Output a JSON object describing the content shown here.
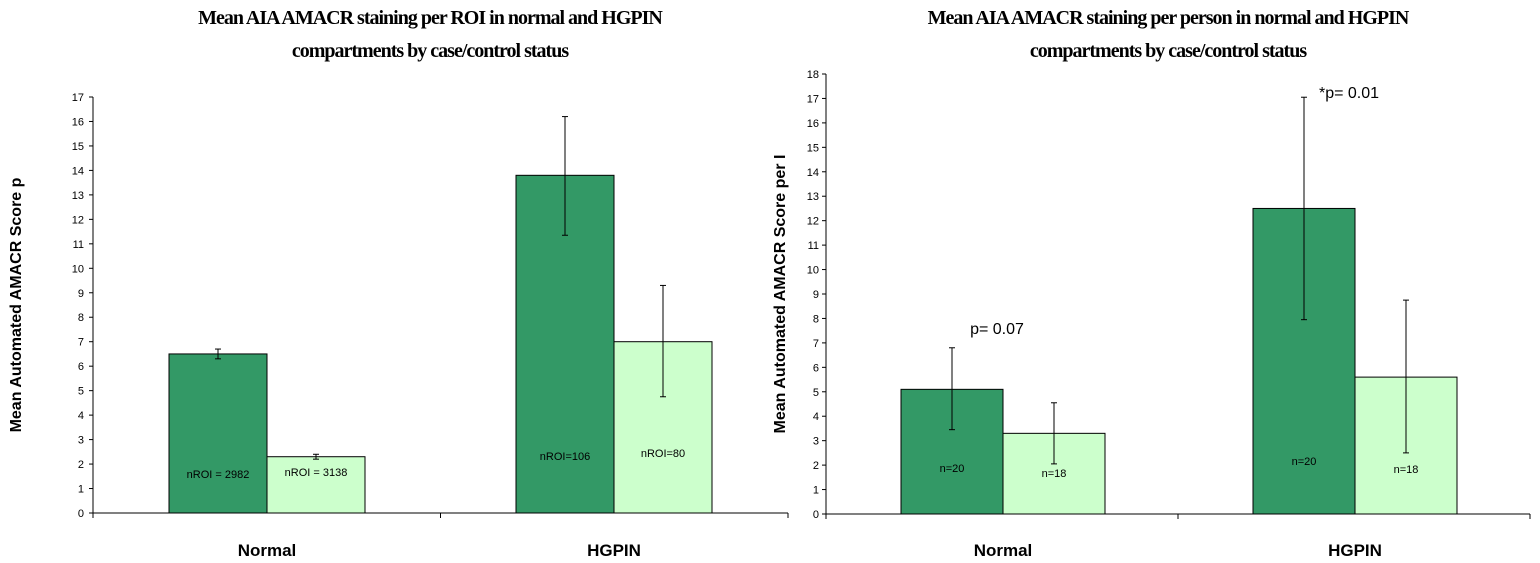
{
  "chart_data": [
    {
      "type": "bar",
      "title_lines": [
        "Mean AIA AMACR staining per ROI in   normal and HGPIN",
        "compartments by case/control status"
      ],
      "ylabel": "Mean Automated  AMACR Score p",
      "xlabel": "",
      "ylim": [
        0,
        17
      ],
      "yticks": [
        0,
        1,
        2,
        3,
        4,
        5,
        6,
        7,
        8,
        9,
        10,
        11,
        12,
        13,
        14,
        15,
        16,
        17
      ],
      "categories": [
        "Normal",
        "HGPIN"
      ],
      "series": [
        {
          "color": "#339966",
          "values": [
            6.5,
            13.8
          ],
          "error_low": [
            6.3,
            11.35
          ],
          "error_high": [
            6.7,
            16.2
          ],
          "bar_labels": [
            "nROI = 2982",
            "nROI=106"
          ]
        },
        {
          "color": "#ccffcc",
          "values": [
            2.3,
            7.0
          ],
          "error_low": [
            2.2,
            4.75
          ],
          "error_high": [
            2.4,
            9.3
          ],
          "bar_labels": [
            "nROI = 3138",
            "nROI=80"
          ]
        }
      ],
      "annotations": []
    },
    {
      "type": "bar",
      "title_lines": [
        "Mean AIA AMACR staining per person in normal and HGPIN",
        "compartments by case/control status"
      ],
      "ylabel": "Mean Automated AMACR Score per I",
      "xlabel": "",
      "ylim": [
        0,
        18
      ],
      "yticks": [
        0,
        1,
        2,
        3,
        4,
        5,
        6,
        7,
        8,
        9,
        10,
        11,
        12,
        13,
        14,
        15,
        16,
        17,
        18
      ],
      "categories": [
        "Normal",
        "HGPIN"
      ],
      "series": [
        {
          "color": "#339966",
          "values": [
            5.1,
            12.5
          ],
          "error_low": [
            3.45,
            7.95
          ],
          "error_high": [
            6.8,
            17.05
          ],
          "bar_labels": [
            "n=20",
            "n=20"
          ]
        },
        {
          "color": "#ccffcc",
          "values": [
            3.3,
            5.6
          ],
          "error_low": [
            2.05,
            2.5
          ],
          "error_high": [
            4.55,
            8.75
          ],
          "bar_labels": [
            "n=18",
            "n=18"
          ]
        }
      ],
      "annotations": [
        {
          "text": "p= 0.07",
          "category": 0
        },
        {
          "text": "*p= 0.01",
          "category": 1
        }
      ]
    }
  ]
}
